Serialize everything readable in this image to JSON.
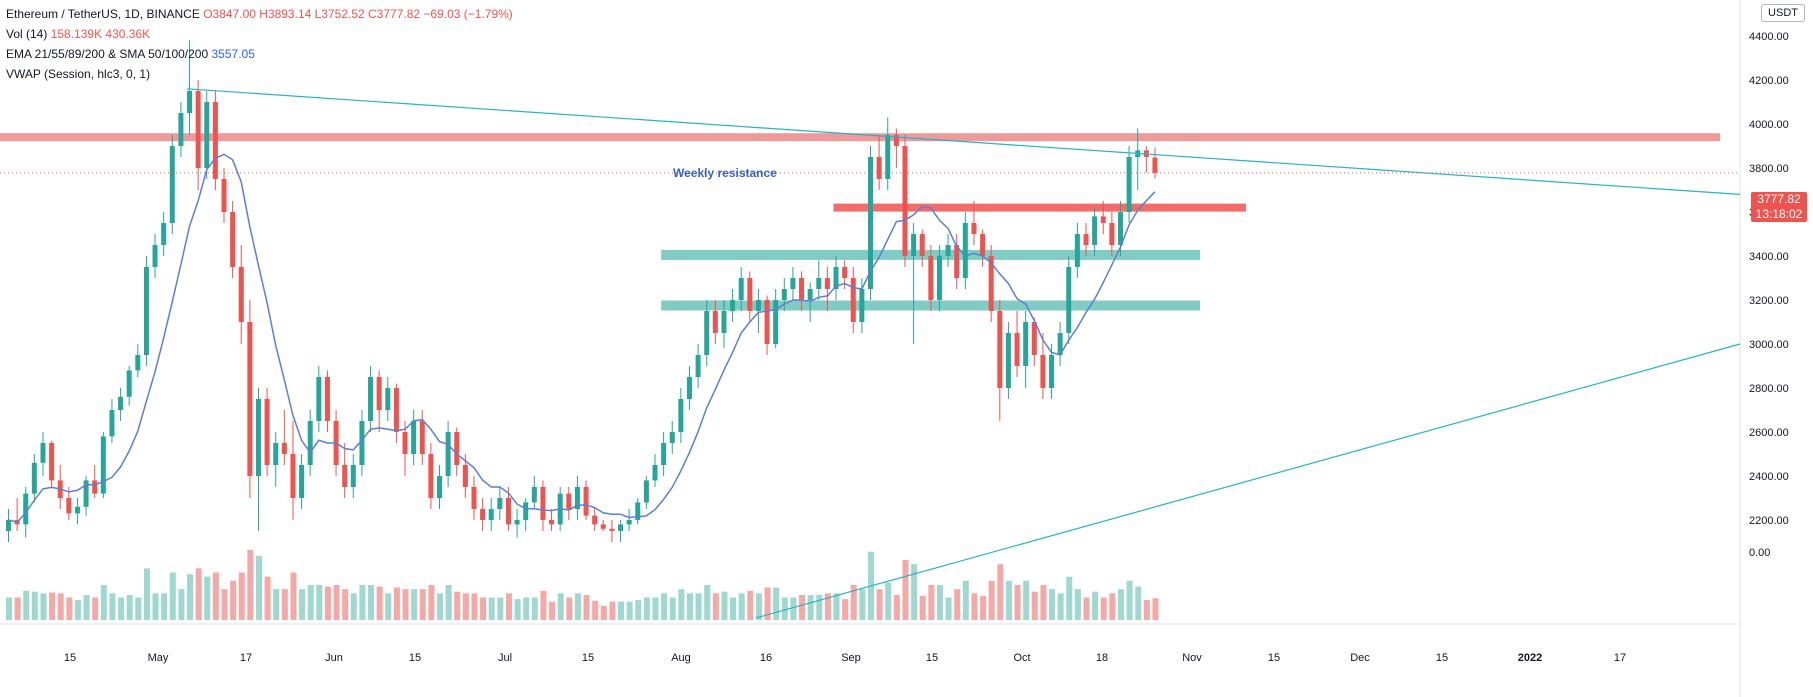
{
  "header": {
    "symbol": "Ethereum / TetherUS, 1D, BINANCE",
    "ohlc": "O3847.00  H3893.14  L3752.52  C3777.82  −69.03 (−1.79%)",
    "vol_label": "Vol (14)",
    "vol_values": "158.139K  430.36K",
    "ema_label": "EMA 21/55/89/200 & SMA 50/100/200",
    "ema_value": "3557.05",
    "vwap_label": "VWAP (Session, hlc3, 0, 1)"
  },
  "currency": "USDT",
  "last_price": {
    "value": "3777.82",
    "countdown": "13:18:02"
  },
  "annotation": "Weekly resistance",
  "colors": {
    "up": "#26a69a",
    "down": "#ef5350",
    "ema": "#5b7fd6",
    "trend": "#26b3c4",
    "resistance": "#ef9a9a",
    "support": "#80cbc4"
  },
  "chart_data": {
    "type": "candlestick",
    "y_ticks": [
      "4400.00",
      "4200.00",
      "4000.00",
      "3800.00",
      "3600.00",
      "3400.00",
      "3200.00",
      "3000.00",
      "2800.00",
      "2600.00",
      "2400.00",
      "2200.00"
    ],
    "volume_tick": "0.00",
    "x_ticks": [
      "15",
      "May",
      "17",
      "Jun",
      "15",
      "Jul",
      "15",
      "Aug",
      "16",
      "Sep",
      "15",
      "Oct",
      "18",
      "Nov",
      "15",
      "Dec",
      "15",
      "2022",
      "17"
    ],
    "ylim": [
      2150,
      4450
    ],
    "levels": {
      "weekly_resistance": 3940,
      "resistance_2": 3620,
      "support_1": 3405,
      "support_2": 3175
    },
    "series": [
      {
        "name": "ETHUSDT",
        "ohlc": [
          [
            2150,
            2250,
            2100,
            2200
          ],
          [
            2200,
            2300,
            2150,
            2180
          ],
          [
            2180,
            2350,
            2120,
            2320
          ],
          [
            2320,
            2500,
            2280,
            2460
          ],
          [
            2460,
            2600,
            2400,
            2550
          ],
          [
            2550,
            2560,
            2350,
            2380
          ],
          [
            2380,
            2450,
            2250,
            2300
          ],
          [
            2300,
            2350,
            2200,
            2230
          ],
          [
            2230,
            2300,
            2180,
            2260
          ],
          [
            2260,
            2400,
            2220,
            2380
          ],
          [
            2380,
            2450,
            2300,
            2320
          ],
          [
            2320,
            2600,
            2300,
            2580
          ],
          [
            2580,
            2750,
            2550,
            2700
          ],
          [
            2700,
            2800,
            2650,
            2760
          ],
          [
            2760,
            2900,
            2720,
            2880
          ],
          [
            2880,
            3000,
            2850,
            2950
          ],
          [
            2950,
            3400,
            2900,
            3350
          ],
          [
            3350,
            3500,
            3300,
            3450
          ],
          [
            3450,
            3600,
            3400,
            3550
          ],
          [
            3550,
            3950,
            3500,
            3900
          ],
          [
            3900,
            4100,
            3850,
            4050
          ],
          [
            4050,
            4380,
            3950,
            4150
          ],
          [
            4150,
            4200,
            3700,
            3800
          ],
          [
            3800,
            4150,
            3750,
            4100
          ],
          [
            4100,
            4150,
            3700,
            3750
          ],
          [
            3750,
            3800,
            3550,
            3600
          ],
          [
            3600,
            3650,
            3300,
            3350
          ],
          [
            3350,
            3450,
            3000,
            3100
          ],
          [
            3100,
            3200,
            2300,
            2400
          ],
          [
            2400,
            2800,
            2150,
            2750
          ],
          [
            2750,
            2800,
            2400,
            2450
          ],
          [
            2450,
            2600,
            2350,
            2550
          ],
          [
            2550,
            2700,
            2450,
            2500
          ],
          [
            2500,
            2650,
            2200,
            2300
          ],
          [
            2300,
            2500,
            2250,
            2450
          ],
          [
            2450,
            2700,
            2400,
            2650
          ],
          [
            2650,
            2900,
            2600,
            2850
          ],
          [
            2850,
            2880,
            2600,
            2650
          ],
          [
            2650,
            2700,
            2400,
            2450
          ],
          [
            2450,
            2550,
            2300,
            2350
          ],
          [
            2350,
            2500,
            2300,
            2450
          ],
          [
            2450,
            2700,
            2400,
            2650
          ],
          [
            2650,
            2900,
            2600,
            2850
          ],
          [
            2850,
            2880,
            2600,
            2700
          ],
          [
            2700,
            2850,
            2650,
            2800
          ],
          [
            2800,
            2820,
            2550,
            2600
          ],
          [
            2600,
            2650,
            2400,
            2500
          ],
          [
            2500,
            2700,
            2450,
            2650
          ],
          [
            2650,
            2700,
            2450,
            2500
          ],
          [
            2500,
            2550,
            2250,
            2300
          ],
          [
            2300,
            2450,
            2250,
            2400
          ],
          [
            2400,
            2650,
            2350,
            2600
          ],
          [
            2600,
            2620,
            2400,
            2450
          ],
          [
            2450,
            2500,
            2300,
            2350
          ],
          [
            2350,
            2400,
            2200,
            2250
          ],
          [
            2250,
            2300,
            2150,
            2200
          ],
          [
            2200,
            2300,
            2150,
            2250
          ],
          [
            2250,
            2350,
            2200,
            2300
          ],
          [
            2300,
            2350,
            2150,
            2180
          ],
          [
            2180,
            2250,
            2120,
            2200
          ],
          [
            2200,
            2300,
            2150,
            2280
          ],
          [
            2280,
            2400,
            2250,
            2350
          ],
          [
            2350,
            2380,
            2150,
            2200
          ],
          [
            2200,
            2250,
            2150,
            2180
          ],
          [
            2180,
            2350,
            2150,
            2320
          ],
          [
            2320,
            2350,
            2200,
            2250
          ],
          [
            2250,
            2400,
            2200,
            2350
          ],
          [
            2350,
            2380,
            2200,
            2220
          ],
          [
            2220,
            2260,
            2150,
            2180
          ],
          [
            2180,
            2200,
            2150,
            2160
          ],
          [
            2160,
            2200,
            2100,
            2150
          ],
          [
            2150,
            2200,
            2100,
            2180
          ],
          [
            2180,
            2250,
            2150,
            2200
          ],
          [
            2200,
            2300,
            2180,
            2280
          ],
          [
            2280,
            2400,
            2250,
            2380
          ],
          [
            2380,
            2500,
            2350,
            2450
          ],
          [
            2450,
            2600,
            2400,
            2550
          ],
          [
            2550,
            2650,
            2500,
            2600
          ],
          [
            2600,
            2800,
            2550,
            2750
          ],
          [
            2750,
            2900,
            2700,
            2850
          ],
          [
            2850,
            3000,
            2800,
            2950
          ],
          [
            2950,
            3200,
            2900,
            3150
          ],
          [
            3150,
            3200,
            3000,
            3050
          ],
          [
            3050,
            3200,
            2980,
            3150
          ],
          [
            3150,
            3250,
            3100,
            3200
          ],
          [
            3200,
            3350,
            3150,
            3300
          ],
          [
            3300,
            3330,
            3100,
            3150
          ],
          [
            3150,
            3250,
            3050,
            3200
          ],
          [
            3200,
            3220,
            2950,
            3000
          ],
          [
            3000,
            3250,
            2980,
            3200
          ],
          [
            3200,
            3300,
            3150,
            3250
          ],
          [
            3250,
            3350,
            3200,
            3300
          ],
          [
            3300,
            3330,
            3150,
            3200
          ],
          [
            3200,
            3280,
            3100,
            3250
          ],
          [
            3250,
            3380,
            3200,
            3300
          ],
          [
            3300,
            3350,
            3150,
            3250
          ],
          [
            3250,
            3400,
            3200,
            3350
          ],
          [
            3350,
            3380,
            3250,
            3300
          ],
          [
            3300,
            3350,
            3050,
            3100
          ],
          [
            3100,
            3300,
            3050,
            3250
          ],
          [
            3250,
            3900,
            3200,
            3850
          ],
          [
            3850,
            3950,
            3700,
            3750
          ],
          [
            3750,
            4030,
            3700,
            3950
          ],
          [
            3950,
            3980,
            3800,
            3900
          ],
          [
            3900,
            3950,
            3350,
            3400
          ],
          [
            3400,
            3550,
            3000,
            3500
          ],
          [
            3500,
            3520,
            3350,
            3400
          ],
          [
            3400,
            3450,
            3150,
            3200
          ],
          [
            3200,
            3450,
            3150,
            3400
          ],
          [
            3400,
            3500,
            3350,
            3450
          ],
          [
            3450,
            3500,
            3250,
            3300
          ],
          [
            3300,
            3600,
            3250,
            3550
          ],
          [
            3550,
            3650,
            3450,
            3500
          ],
          [
            3500,
            3520,
            3350,
            3400
          ],
          [
            3400,
            3450,
            3100,
            3150
          ],
          [
            3150,
            3200,
            2650,
            2800
          ],
          [
            2800,
            3100,
            2750,
            3050
          ],
          [
            3050,
            3150,
            2850,
            2900
          ],
          [
            2900,
            3150,
            2800,
            3100
          ],
          [
            3100,
            3120,
            2900,
            2950
          ],
          [
            2950,
            3050,
            2750,
            2800
          ],
          [
            2800,
            3000,
            2750,
            2950
          ],
          [
            2950,
            3100,
            2900,
            3050
          ],
          [
            3050,
            3400,
            3000,
            3350
          ],
          [
            3350,
            3550,
            3300,
            3500
          ],
          [
            3500,
            3550,
            3400,
            3450
          ],
          [
            3450,
            3620,
            3400,
            3580
          ],
          [
            3580,
            3650,
            3500,
            3550
          ],
          [
            3550,
            3600,
            3400,
            3450
          ],
          [
            3450,
            3650,
            3400,
            3600
          ],
          [
            3600,
            3900,
            3550,
            3850
          ],
          [
            3850,
            3980,
            3700,
            3880
          ],
          [
            3880,
            3900,
            3780,
            3850
          ],
          [
            3847,
            3893,
            3752,
            3778
          ]
        ]
      }
    ]
  }
}
